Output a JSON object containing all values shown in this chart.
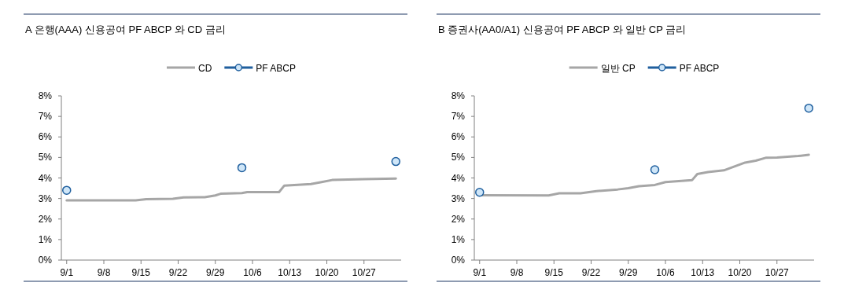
{
  "chart_data": [
    {
      "type": "line",
      "title": "A 은행(AAA) 신용공여 PF ABCP 와 CD 금리",
      "legend": "top",
      "xlim": [
        "--08-31",
        "--11-03"
      ],
      "xticks": [
        {
          "value": "--09-01",
          "label": "9/1"
        },
        {
          "value": "--09-08",
          "label": "9/8"
        },
        {
          "value": "--09-15",
          "label": "9/15"
        },
        {
          "value": "--09-22",
          "label": "9/22"
        },
        {
          "value": "--09-29",
          "label": "9/29"
        },
        {
          "value": "--10-06",
          "label": "10/6"
        },
        {
          "value": "--10-13",
          "label": "10/13"
        },
        {
          "value": "--10-20",
          "label": "10/20"
        },
        {
          "value": "--10-27",
          "label": "10/27"
        }
      ],
      "ylim": [
        0,
        8
      ],
      "yticks": [
        {
          "value": 0,
          "label": "0%"
        },
        {
          "value": 1,
          "label": "1%"
        },
        {
          "value": 2,
          "label": "2%"
        },
        {
          "value": 3,
          "label": "3%"
        },
        {
          "value": 4,
          "label": "4%"
        },
        {
          "value": 5,
          "label": "5%"
        },
        {
          "value": 6,
          "label": "6%"
        },
        {
          "value": 7,
          "label": "7%"
        },
        {
          "value": 8,
          "label": "8%"
        }
      ],
      "series": [
        {
          "name": "CD",
          "color": "#a6a6a6",
          "marker": "none",
          "x": [
            "--09-01",
            "--09-14",
            "--09-16",
            "--09-21",
            "--09-23",
            "--09-27",
            "--09-29",
            "--09-30",
            "--10-04",
            "--10-05",
            "--10-11",
            "--10-12",
            "--10-17",
            "--10-19",
            "--10-21",
            "--10-27",
            "--11-02"
          ],
          "values": [
            2.91,
            2.91,
            2.97,
            2.99,
            3.05,
            3.06,
            3.15,
            3.23,
            3.26,
            3.31,
            3.31,
            3.63,
            3.7,
            3.8,
            3.9,
            3.94,
            3.97
          ]
        },
        {
          "name": "PF ABCP",
          "type": "scatter",
          "color": "#1f5f9e",
          "marker": "circle",
          "x": [
            "--09-01",
            "--10-04",
            "--11-02"
          ],
          "values": [
            3.4,
            4.5,
            4.8
          ]
        }
      ]
    },
    {
      "type": "line",
      "title": "B 증권사(AA0/A1) 신용공여 PF ABCP 와 일반 CP 금리",
      "legend": "top",
      "xlim": [
        "--08-31",
        "--11-03"
      ],
      "xticks": [
        {
          "value": "--09-01",
          "label": "9/1"
        },
        {
          "value": "--09-08",
          "label": "9/8"
        },
        {
          "value": "--09-15",
          "label": "9/15"
        },
        {
          "value": "--09-22",
          "label": "9/22"
        },
        {
          "value": "--09-29",
          "label": "9/29"
        },
        {
          "value": "--10-06",
          "label": "10/6"
        },
        {
          "value": "--10-13",
          "label": "10/13"
        },
        {
          "value": "--10-20",
          "label": "10/20"
        },
        {
          "value": "--10-27",
          "label": "10/27"
        }
      ],
      "ylim": [
        0,
        8
      ],
      "yticks": [
        {
          "value": 0,
          "label": "0%"
        },
        {
          "value": 1,
          "label": "1%"
        },
        {
          "value": 2,
          "label": "2%"
        },
        {
          "value": 3,
          "label": "3%"
        },
        {
          "value": 4,
          "label": "4%"
        },
        {
          "value": 5,
          "label": "5%"
        },
        {
          "value": 6,
          "label": "6%"
        },
        {
          "value": 7,
          "label": "7%"
        },
        {
          "value": 8,
          "label": "8%"
        }
      ],
      "series": [
        {
          "name": "일반 CP",
          "color": "#a6a6a6",
          "marker": "none",
          "x": [
            "--09-01",
            "--09-14",
            "--09-16",
            "--09-20",
            "--09-23",
            "--09-27",
            "--09-29",
            "--10-01",
            "--10-04",
            "--10-06",
            "--10-11",
            "--10-12",
            "--10-14",
            "--10-17",
            "--10-19",
            "--10-21",
            "--10-23",
            "--10-25",
            "--10-27",
            "--10-31",
            "--11-02"
          ],
          "values": [
            3.16,
            3.15,
            3.25,
            3.25,
            3.36,
            3.44,
            3.5,
            3.6,
            3.66,
            3.8,
            3.89,
            4.19,
            4.29,
            4.37,
            4.56,
            4.75,
            4.84,
            4.99,
            5.0,
            5.07,
            5.13
          ]
        },
        {
          "name": "PF ABCP",
          "type": "scatter",
          "color": "#1f5f9e",
          "marker": "circle",
          "x": [
            "--09-01",
            "--10-04",
            "--11-02"
          ],
          "values": [
            3.3,
            4.4,
            7.4
          ]
        }
      ]
    }
  ]
}
